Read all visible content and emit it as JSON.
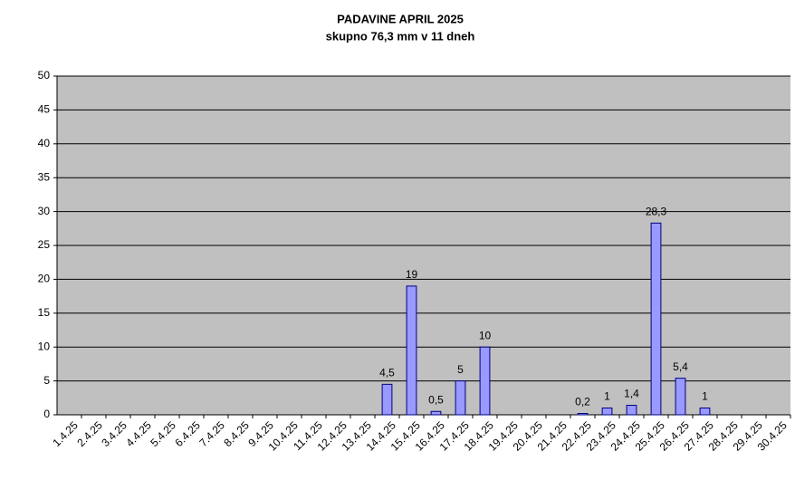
{
  "chart_data": {
    "type": "bar",
    "title": "PADAVINE APRIL 2025",
    "subtitle": "skupno 76,3 mm v 11 dneh",
    "categories": [
      "1.4.25",
      "2.4.25",
      "3.4.25",
      "4.4.25",
      "5.4.25",
      "6.4.25",
      "7.4.25",
      "8.4.25",
      "9.4.25",
      "10.4.25",
      "11.4.25",
      "12.4.25",
      "13.4.25",
      "14.4.25",
      "15.4.25",
      "16.4.25",
      "17.4.25",
      "18.4.25",
      "19.4.25",
      "20.4.25",
      "21.4.25",
      "22.4.25",
      "23.4.25",
      "24.4.25",
      "25.4.25",
      "26.4.25",
      "27.4.25",
      "28.4.25",
      "29.4.25",
      "30.4.25"
    ],
    "values": [
      null,
      null,
      null,
      null,
      null,
      null,
      null,
      null,
      null,
      null,
      null,
      null,
      null,
      4.5,
      19,
      0.5,
      5,
      10,
      null,
      null,
      null,
      0.2,
      1,
      1.4,
      28.3,
      5.4,
      1,
      null,
      null,
      null
    ],
    "value_labels": [
      null,
      null,
      null,
      null,
      null,
      null,
      null,
      null,
      null,
      null,
      null,
      null,
      null,
      "4,5",
      "19",
      "0,5",
      "5",
      "10",
      null,
      null,
      null,
      "0,2",
      "1",
      "1,4",
      "28,3",
      "5,4",
      "1",
      null,
      null,
      null
    ],
    "color": "#9999ff",
    "ylim": [
      0,
      50
    ],
    "yticks": [
      0,
      5,
      10,
      15,
      20,
      25,
      30,
      35,
      40,
      45,
      50
    ],
    "grid": true
  }
}
